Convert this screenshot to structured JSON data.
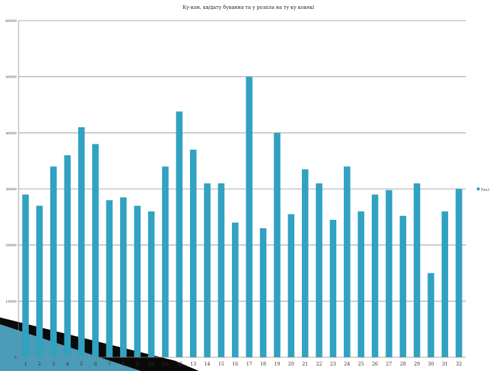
{
  "chart_data": {
    "type": "bar",
    "title": "Ку-кон, кв/дату бування та у розпла на ту ку кокекі",
    "xlabel": "",
    "ylabel": "",
    "ylim": [
      0,
      60000
    ],
    "yticks": [
      0,
      10000,
      20000,
      30000,
      40000,
      50000,
      60000
    ],
    "grid": true,
    "legend_position": "right",
    "categories": [
      "1",
      "2",
      "3",
      "4",
      "5",
      "6",
      "7",
      "8",
      "9",
      "10",
      "11",
      "12",
      "13",
      "14",
      "15",
      "16",
      "17",
      "18",
      "19",
      "20",
      "21",
      "22",
      "23",
      "24",
      "25",
      "26",
      "27",
      "28",
      "29",
      "30",
      "31",
      "32"
    ],
    "series": [
      {
        "name": "Ряд1",
        "color": "#31a2c1",
        "values": [
          29000,
          27000,
          34000,
          36000,
          41000,
          38000,
          28000,
          28500,
          27000,
          26000,
          34000,
          43800,
          37000,
          31000,
          31000,
          24000,
          50000,
          23000,
          40000,
          25500,
          33500,
          31000,
          24500,
          34000,
          26000,
          29000,
          29800,
          25200,
          31000,
          15000,
          26000,
          30000
        ]
      }
    ]
  },
  "colors": {
    "bar": "#31a2c1",
    "grid": "#8a8a8a",
    "axis": "#8a8a8a",
    "decor_light": "#bfe3ee",
    "decor_mid": "#4a9cb8",
    "decor_dark": "#0a0a0a"
  }
}
